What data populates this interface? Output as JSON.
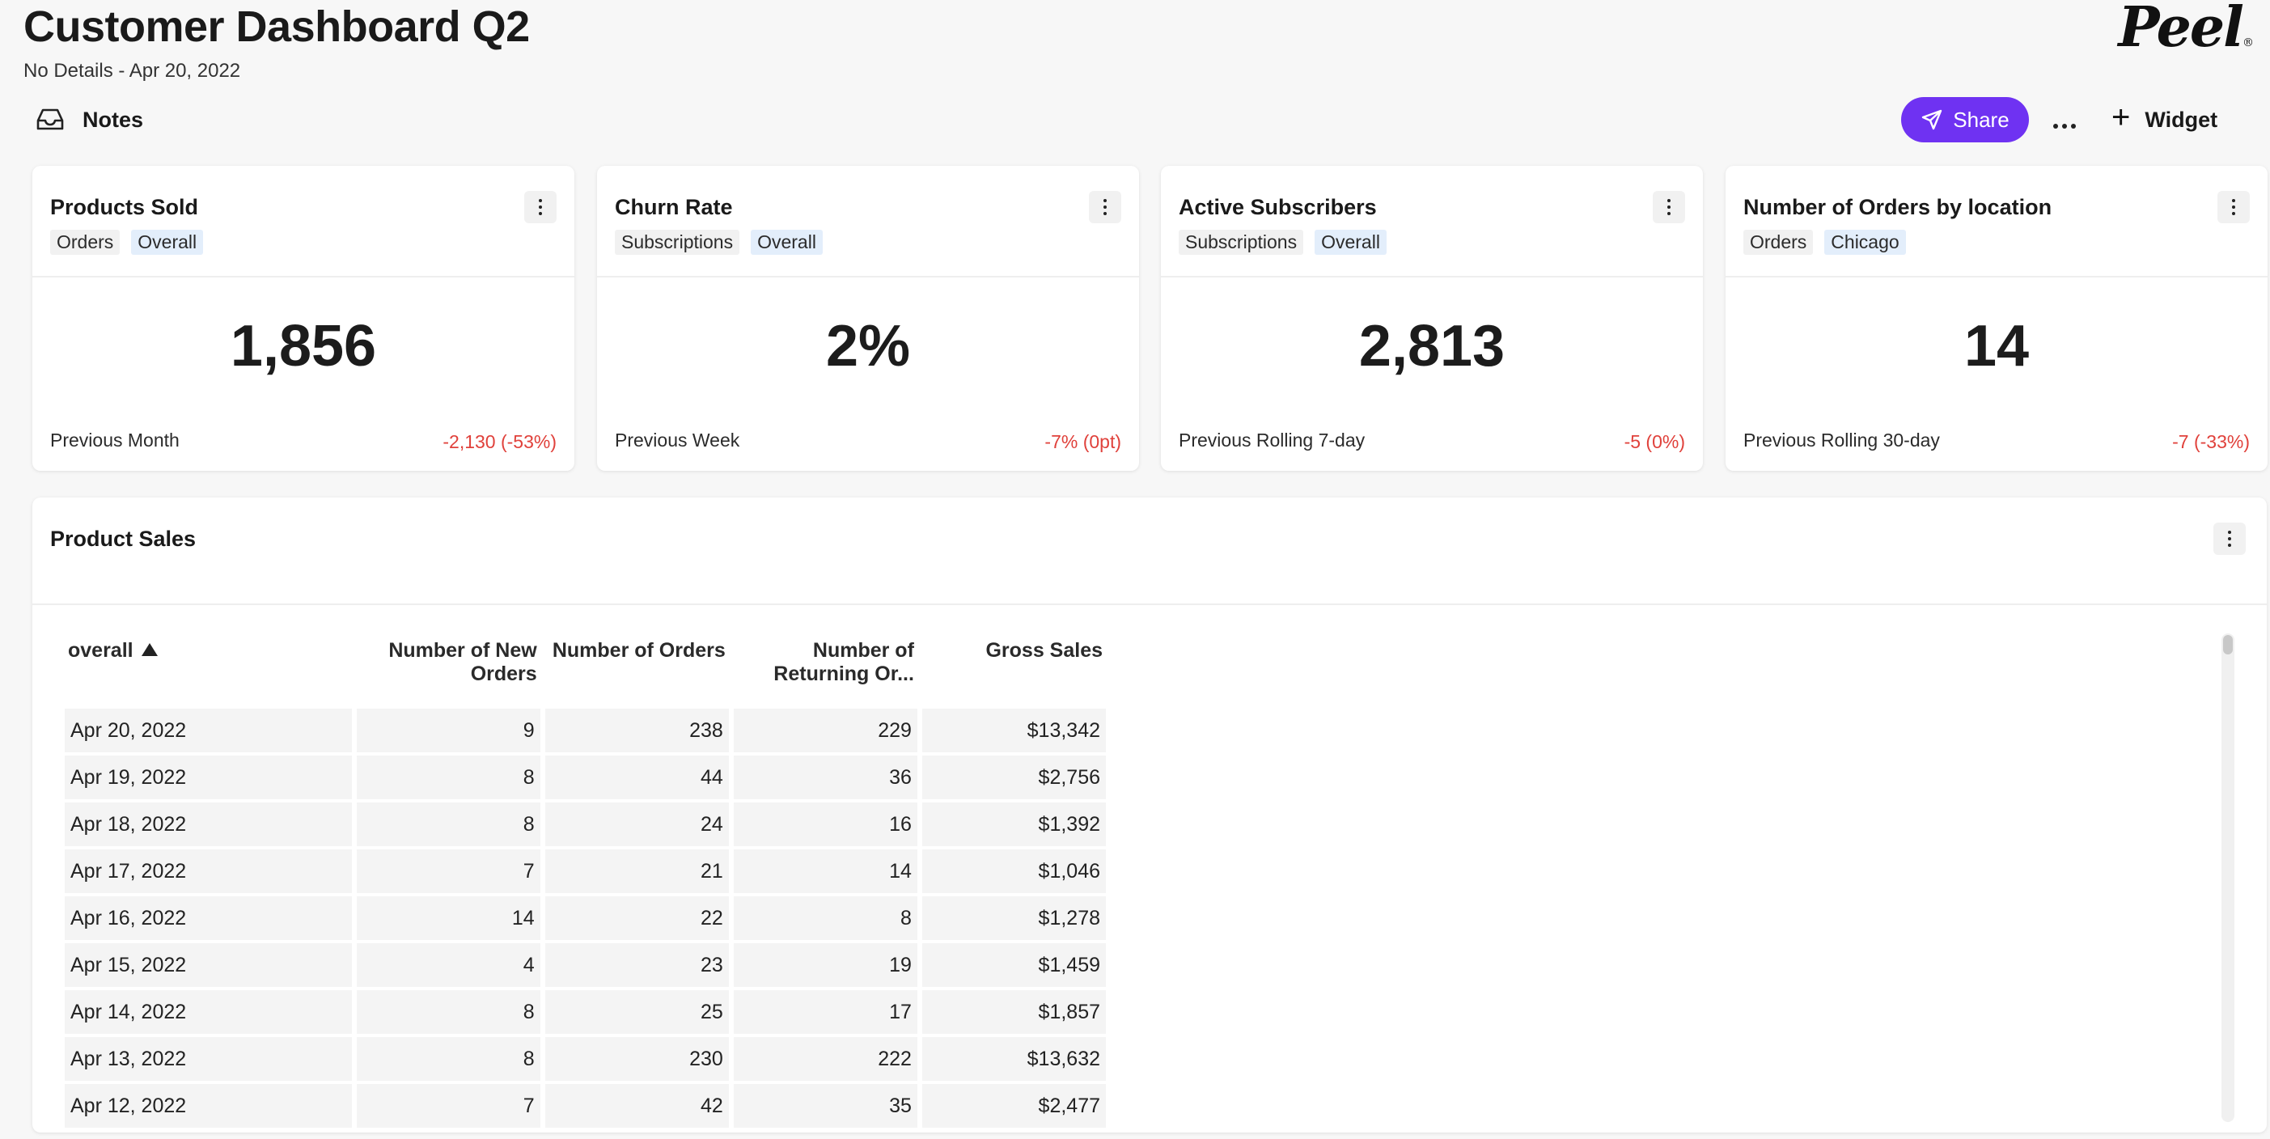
{
  "header": {
    "title": "Customer Dashboard Q2",
    "subtitle": "No Details - Apr 20, 2022",
    "logo_text": "Peel"
  },
  "toolbar": {
    "notes_label": "Notes",
    "share_label": "Share",
    "widget_label": "Widget",
    "accent_color": "#6f32f2"
  },
  "cards": [
    {
      "title": "Products Sold",
      "tags": [
        "Orders",
        "Overall"
      ],
      "value": "1,856",
      "comparison_label": "Previous Month",
      "delta": "-2,130 (-53%)"
    },
    {
      "title": "Churn Rate",
      "tags": [
        "Subscriptions",
        "Overall"
      ],
      "value": "2%",
      "comparison_label": "Previous Week",
      "delta": "-7% (0pt)"
    },
    {
      "title": "Active Subscribers",
      "tags": [
        "Subscriptions",
        "Overall"
      ],
      "value": "2,813",
      "comparison_label": "Previous Rolling 7-day",
      "delta": "-5 (0%)"
    },
    {
      "title": "Number of Orders by location",
      "tags": [
        "Orders",
        "Chicago"
      ],
      "value": "14",
      "comparison_label": "Previous Rolling 30-day",
      "delta": "-7 (-33%)"
    }
  ],
  "product_sales": {
    "title": "Product Sales",
    "columns": [
      "overall",
      "Number of New Orders",
      "Number of Orders",
      "Number of Returning Or...",
      "Gross Sales"
    ],
    "sort_column": "overall",
    "sort_direction": "ascending",
    "rows": [
      [
        "Apr 20, 2022",
        "9",
        "238",
        "229",
        "$13,342"
      ],
      [
        "Apr 19, 2022",
        "8",
        "44",
        "36",
        "$2,756"
      ],
      [
        "Apr 18, 2022",
        "8",
        "24",
        "16",
        "$1,392"
      ],
      [
        "Apr 17, 2022",
        "7",
        "21",
        "14",
        "$1,046"
      ],
      [
        "Apr 16, 2022",
        "14",
        "22",
        "8",
        "$1,278"
      ],
      [
        "Apr 15, 2022",
        "4",
        "23",
        "19",
        "$1,459"
      ],
      [
        "Apr 14, 2022",
        "8",
        "25",
        "17",
        "$1,857"
      ],
      [
        "Apr 13, 2022",
        "8",
        "230",
        "222",
        "$13,632"
      ],
      [
        "Apr 12, 2022",
        "7",
        "42",
        "35",
        "$2,477"
      ]
    ]
  },
  "colors": {
    "negative_delta": "#e0413b",
    "tag_highlight": "#e3eefb"
  },
  "icons": {
    "notes": "inbox-tray-icon",
    "share": "paper-plane-icon",
    "more": "ellipsis-horizontal-icon",
    "widget": "plus-icon",
    "card_menu": "kebab-vertical-icon"
  }
}
